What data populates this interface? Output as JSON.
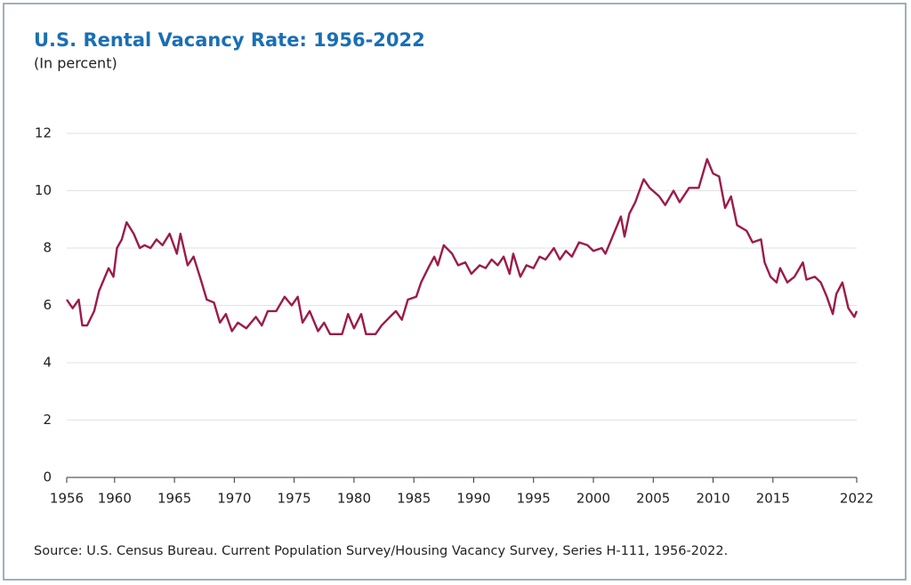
{
  "chart_data": {
    "type": "line",
    "title": "U.S. Rental Vacancy Rate: 1956-2022",
    "subtitle": "(In percent)",
    "source": "Source: U.S. Census Bureau. Current Population Survey/Housing Vacancy Survey, Series H-111, 1956-2022.",
    "color": "#9b1b4a",
    "grid": true,
    "xlim": [
      1956,
      2022
    ],
    "xticks": [
      1956,
      1960,
      1965,
      1970,
      1975,
      1980,
      1985,
      1990,
      1995,
      2000,
      2005,
      2010,
      2015,
      2022
    ],
    "ylim": [
      0,
      12
    ],
    "yticks": [
      0,
      2,
      4,
      6,
      8,
      10,
      12
    ],
    "x": [
      1956,
      1956.5,
      1957,
      1957.3,
      1957.7,
      1958.3,
      1958.7,
      1959.5,
      1959.9,
      1960.2,
      1960.6,
      1961,
      1961.6,
      1962.1,
      1962.5,
      1963,
      1963.5,
      1964,
      1964.6,
      1965.2,
      1965.5,
      1966.1,
      1966.6,
      1967.2,
      1967.7,
      1968.3,
      1968.8,
      1969.3,
      1969.8,
      1970.3,
      1971,
      1971.8,
      1972.3,
      1972.8,
      1973.5,
      1974.2,
      1974.8,
      1975.3,
      1975.7,
      1976.3,
      1977,
      1977.5,
      1978,
      1979,
      1979.5,
      1980,
      1980.6,
      1981,
      1981.8,
      1982.3,
      1983,
      1983.5,
      1984,
      1984.5,
      1985.2,
      1985.6,
      1986.2,
      1986.7,
      1987,
      1987.5,
      1988.2,
      1988.7,
      1989.3,
      1989.8,
      1990.5,
      1991,
      1991.5,
      1992,
      1992.5,
      1993,
      1993.3,
      1993.9,
      1994.4,
      1995,
      1995.5,
      1996,
      1996.7,
      1997.2,
      1997.7,
      1998.2,
      1998.8,
      1999.5,
      2000,
      2000.7,
      2001,
      2001.5,
      2002.3,
      2002.6,
      2003,
      2003.5,
      2004.2,
      2004.7,
      2005.5,
      2006,
      2006.7,
      2007.2,
      2008,
      2008.8,
      2009.5,
      2010,
      2010.5,
      2011,
      2011.5,
      2012,
      2012.8,
      2013.3,
      2014,
      2014.3,
      2014.8,
      2015.3,
      2015.6,
      2016.2,
      2016.8,
      2017.5,
      2017.8,
      2018.5,
      2019,
      2019.5,
      2020,
      2020.3,
      2020.8,
      2021.3,
      2021.8,
      2022
    ],
    "values": [
      6.2,
      5.9,
      6.2,
      5.3,
      5.3,
      5.8,
      6.5,
      7.3,
      7.0,
      8.0,
      8.3,
      8.9,
      8.5,
      8.0,
      8.1,
      8.0,
      8.3,
      8.1,
      8.5,
      7.8,
      8.5,
      7.4,
      7.7,
      6.9,
      6.2,
      6.1,
      5.4,
      5.7,
      5.1,
      5.4,
      5.2,
      5.6,
      5.3,
      5.8,
      5.8,
      6.3,
      6.0,
      6.3,
      5.4,
      5.8,
      5.1,
      5.4,
      5.0,
      5.0,
      5.7,
      5.2,
      5.7,
      5.0,
      5.0,
      5.3,
      5.6,
      5.8,
      5.5,
      6.2,
      6.3,
      6.8,
      7.3,
      7.7,
      7.4,
      8.1,
      7.8,
      7.4,
      7.5,
      7.1,
      7.4,
      7.3,
      7.6,
      7.4,
      7.7,
      7.1,
      7.8,
      7.0,
      7.4,
      7.3,
      7.7,
      7.6,
      8.0,
      7.6,
      7.9,
      7.7,
      8.2,
      8.1,
      7.9,
      8.0,
      7.8,
      8.3,
      9.1,
      8.4,
      9.2,
      9.6,
      10.4,
      10.1,
      9.8,
      9.5,
      10.0,
      9.6,
      10.1,
      10.1,
      11.1,
      10.6,
      10.5,
      9.4,
      9.8,
      8.8,
      8.6,
      8.2,
      8.3,
      7.5,
      7.0,
      6.8,
      7.3,
      6.8,
      7.0,
      7.5,
      6.9,
      7.0,
      6.8,
      6.3,
      5.7,
      6.4,
      6.8,
      5.9,
      5.6,
      5.8
    ]
  }
}
